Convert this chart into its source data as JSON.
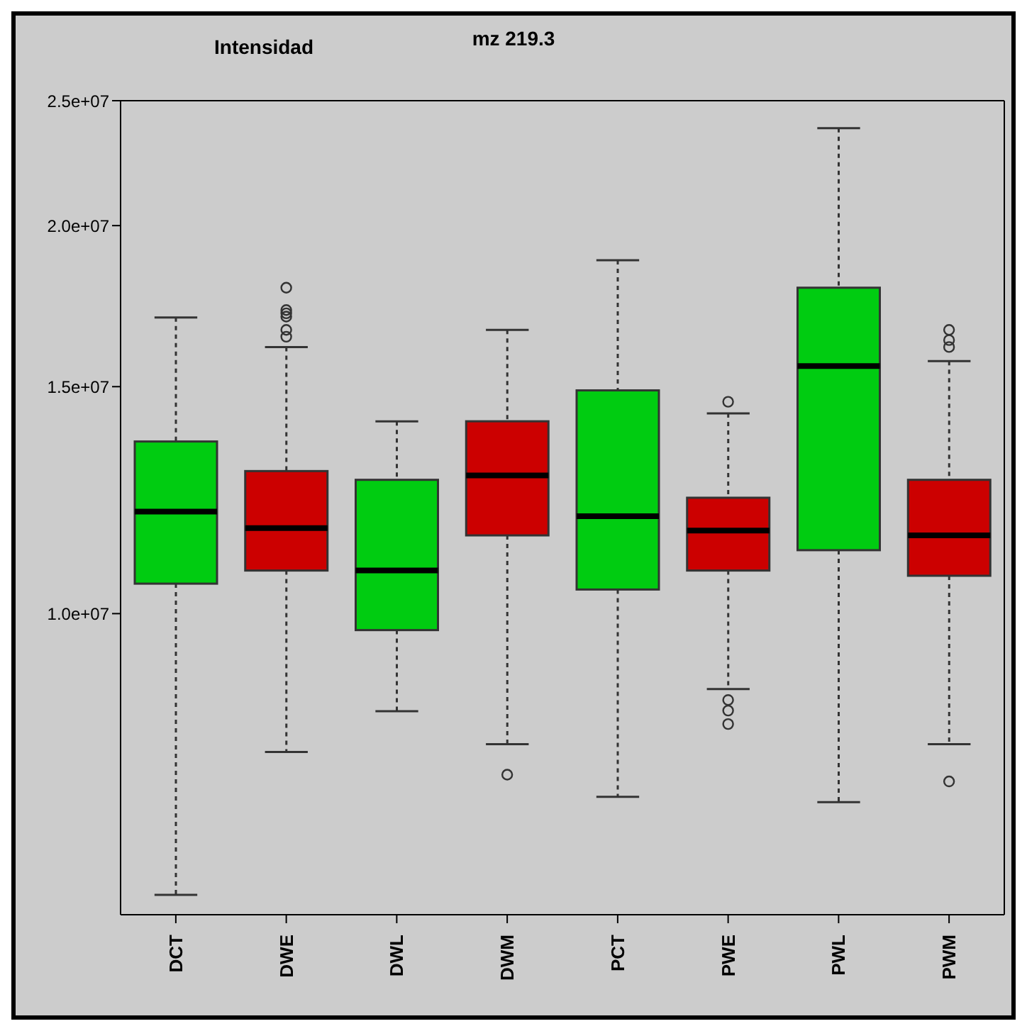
{
  "chart_data": {
    "type": "box",
    "title": "mz 219.3",
    "ylabel": "Intensidad",
    "categories": [
      "DCT",
      "DWE",
      "DWL",
      "DWM",
      "PCT",
      "PWE",
      "PWL",
      "PWM"
    ],
    "colors": [
      "#00cc11",
      "#cc0000",
      "#00cc11",
      "#cc0000",
      "#00cc11",
      "#cc0000",
      "#00cc11",
      "#cc0000"
    ],
    "boxes": [
      {
        "low": 6050000,
        "q1": 10550000,
        "median": 12000000,
        "q3": 13600000,
        "high": 16970000
      },
      {
        "low": 7810000,
        "q1": 10800000,
        "median": 11650000,
        "q3": 12900000,
        "high": 16100000,
        "outliers": [
          17900000,
          17200000,
          17100000,
          17000000,
          16600000,
          16400000
        ]
      },
      {
        "low": 8400000,
        "q1": 9710000,
        "median": 10800000,
        "q3": 12700000,
        "high": 14100000
      },
      {
        "low": 7920000,
        "q1": 11500000,
        "median": 12800000,
        "q3": 14100000,
        "high": 16600000,
        "outliers": [
          7500000
        ]
      },
      {
        "low": 7210000,
        "q1": 10440000,
        "median": 11900000,
        "q3": 14900000,
        "high": 18800000
      },
      {
        "low": 8740000,
        "q1": 10800000,
        "median": 11600000,
        "q3": 12300000,
        "high": 14300000,
        "outliers": [
          14600000,
          8570000,
          8410000,
          8210000
        ]
      },
      {
        "low": 7140000,
        "q1": 11200000,
        "median": 15560000,
        "q3": 17900000,
        "high": 23800000
      },
      {
        "low": 7920000,
        "q1": 10700000,
        "median": 11500000,
        "q3": 12700000,
        "high": 15700000,
        "outliers": [
          16600000,
          16300000,
          16100000,
          7410000
        ]
      }
    ],
    "log": "y",
    "ylim": [
      5840000,
      25000000
    ],
    "yticks": [
      {
        "value": 10000000,
        "label": "1.0e+07"
      },
      {
        "value": 15000000,
        "label": "1.5e+07"
      },
      {
        "value": 20000000,
        "label": "2.0e+07"
      },
      {
        "value": 25000000,
        "label": "2.5e+07"
      }
    ],
    "grid": false,
    "legend": false
  }
}
